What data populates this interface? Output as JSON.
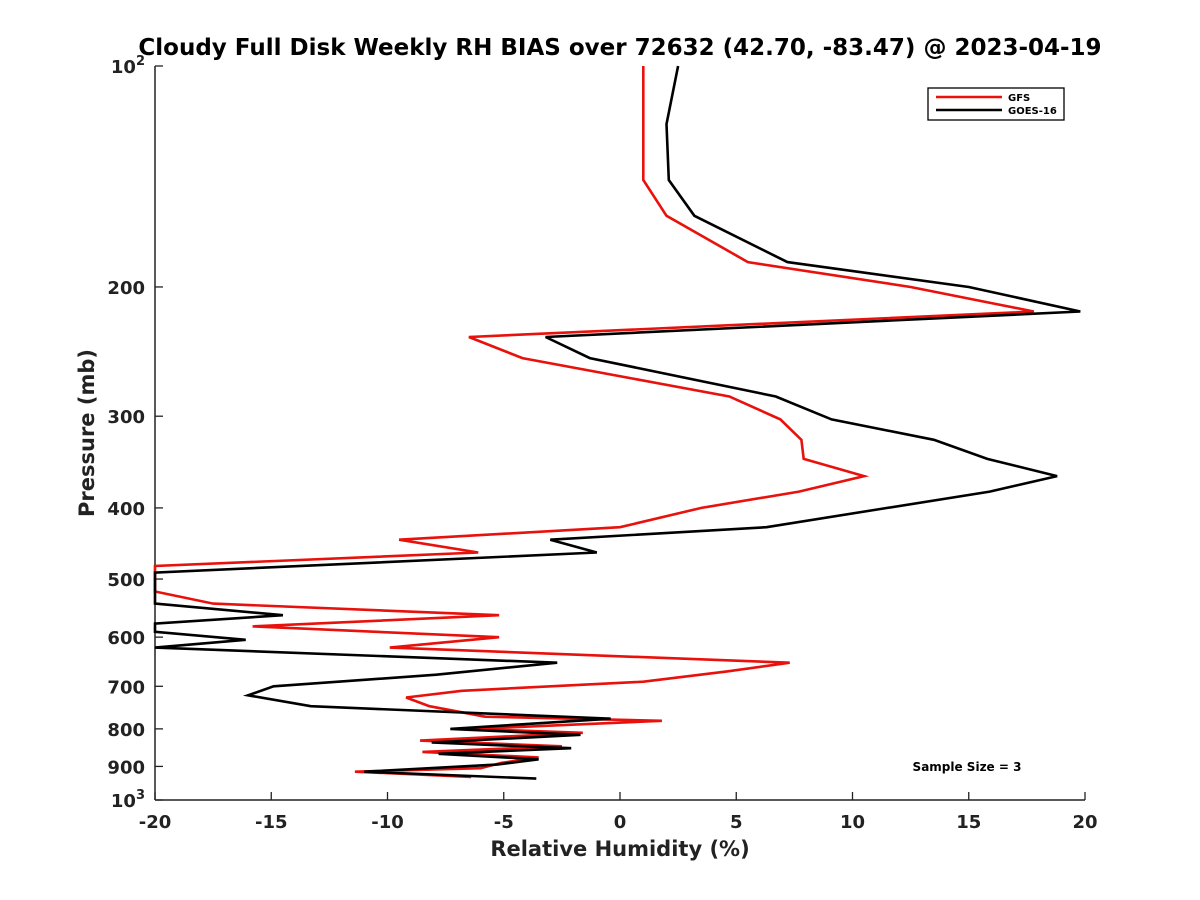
{
  "chart_data": {
    "type": "line",
    "title": "Cloudy Full Disk Weekly RH BIAS over 72632 (42.70, -83.47) @ 2023-04-19",
    "xlabel": "Relative Humidity (%)",
    "ylabel": "Pressure (mb)",
    "xlim": [
      -20,
      20
    ],
    "ylim": [
      100,
      1000
    ],
    "y_scale": "log",
    "y_reversed": true,
    "grid": false,
    "legend_position": "top-right",
    "x_ticks": [
      "-20",
      "-15",
      "-10",
      "-5",
      "0",
      "5",
      "10",
      "15",
      "20"
    ],
    "x_tick_values": [
      -20,
      -15,
      -10,
      -5,
      0,
      5,
      10,
      15,
      20
    ],
    "y_ticks": [
      {
        "value": 100,
        "base": "10",
        "exp": "2"
      },
      {
        "value": 200,
        "label": "200"
      },
      {
        "value": 300,
        "label": "300"
      },
      {
        "value": 400,
        "label": "400"
      },
      {
        "value": 500,
        "label": "500"
      },
      {
        "value": 600,
        "label": "600"
      },
      {
        "value": 700,
        "label": "700"
      },
      {
        "value": 800,
        "label": "800"
      },
      {
        "value": 900,
        "label": "900"
      },
      {
        "value": 1000,
        "base": "10",
        "exp": "3"
      }
    ],
    "annotation": "Sample Size = 3",
    "series": [
      {
        "name": "GFS",
        "color": "#e8110c",
        "points": [
          [
            1.0,
            100
          ],
          [
            1.0,
            120
          ],
          [
            1.0,
            143
          ],
          [
            2.0,
            160
          ],
          [
            5.5,
            185
          ],
          [
            12.5,
            200
          ],
          [
            17.8,
            216
          ],
          [
            -6.5,
            234
          ],
          [
            -4.2,
            250
          ],
          [
            4.7,
            282
          ],
          [
            6.9,
            303
          ],
          [
            7.8,
            323
          ],
          [
            7.9,
            343
          ],
          [
            10.5,
            362
          ],
          [
            7.7,
            380
          ],
          [
            3.5,
            400
          ],
          [
            0.0,
            425
          ],
          [
            -9.5,
            442
          ],
          [
            -6.1,
            460
          ],
          [
            -20.0,
            480
          ],
          [
            -20.0,
            520
          ],
          [
            -17.5,
            540
          ],
          [
            -5.2,
            560
          ],
          [
            -15.8,
            580
          ],
          [
            -5.2,
            600
          ],
          [
            -9.9,
            620
          ],
          [
            7.3,
            650
          ],
          [
            4.6,
            668
          ],
          [
            1.0,
            690
          ],
          [
            -6.8,
            710
          ],
          [
            -9.2,
            725
          ],
          [
            -8.2,
            745
          ],
          [
            -5.8,
            770
          ],
          [
            1.8,
            780
          ],
          [
            -6.3,
            800
          ],
          [
            -1.6,
            810
          ],
          [
            -8.6,
            830
          ],
          [
            -2.5,
            845
          ],
          [
            -8.5,
            860
          ],
          [
            -3.5,
            875
          ],
          [
            -5.1,
            890
          ],
          [
            -6.0,
            905
          ],
          [
            -11.4,
            915
          ],
          [
            -6.4,
            930
          ]
        ]
      },
      {
        "name": "GOES-16",
        "color": "#000000",
        "points": [
          [
            2.5,
            100
          ],
          [
            2.0,
            120
          ],
          [
            2.1,
            143
          ],
          [
            3.2,
            160
          ],
          [
            7.2,
            185
          ],
          [
            15.0,
            200
          ],
          [
            19.8,
            216
          ],
          [
            -3.2,
            234
          ],
          [
            -1.3,
            250
          ],
          [
            6.7,
            282
          ],
          [
            9.1,
            303
          ],
          [
            13.5,
            323
          ],
          [
            15.8,
            343
          ],
          [
            18.8,
            362
          ],
          [
            15.9,
            380
          ],
          [
            11.5,
            400
          ],
          [
            6.3,
            425
          ],
          [
            -3.0,
            442
          ],
          [
            -1.0,
            460
          ],
          [
            -20.0,
            490
          ],
          [
            -20.0,
            540
          ],
          [
            -14.5,
            560
          ],
          [
            -20.0,
            575
          ],
          [
            -20.0,
            590
          ],
          [
            -16.1,
            605
          ],
          [
            -20.0,
            620
          ],
          [
            -2.7,
            650
          ],
          [
            -7.9,
            675
          ],
          [
            -14.9,
            700
          ],
          [
            -16.0,
            720
          ],
          [
            -13.3,
            745
          ],
          [
            -0.4,
            775
          ],
          [
            -7.3,
            800
          ],
          [
            -1.7,
            815
          ],
          [
            -8.1,
            835
          ],
          [
            -2.1,
            850
          ],
          [
            -7.8,
            865
          ],
          [
            -3.5,
            880
          ],
          [
            -5.3,
            895
          ],
          [
            -11.0,
            915
          ],
          [
            -3.6,
            935
          ]
        ]
      }
    ]
  }
}
